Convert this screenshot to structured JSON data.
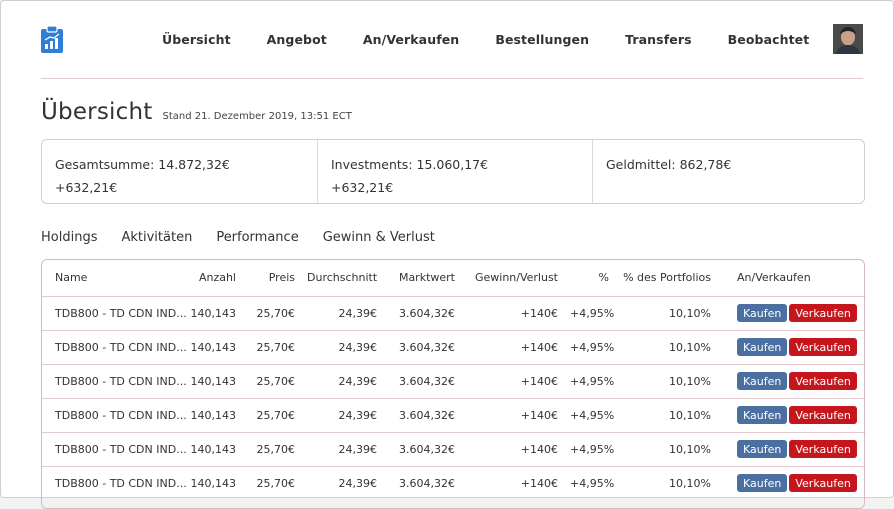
{
  "nav": {
    "items": [
      "Übersicht",
      "Angebot",
      "An/Verkaufen",
      "Bestellungen",
      "Transfers",
      "Beobachtet"
    ]
  },
  "page": {
    "title": "Übersicht",
    "stand": "Stand 21. Dezember 2019, 13:51 ECT"
  },
  "summary": {
    "gesamt": "Gesamtsumme: 14.872,32€",
    "gesamt_change": "+632,21€",
    "investments": "Investments: 15.060,17€",
    "investments_change": "+632,21€",
    "geldmittel": "Geldmittel: 862,78€"
  },
  "tabs": [
    "Holdings",
    "Aktivitäten",
    "Performance",
    "Gewinn & Verlust"
  ],
  "table": {
    "headers": [
      "Name",
      "Anzahl",
      "Preis",
      "Durchschnitt",
      "Marktwert",
      "Gewinn/Verlust",
      "%",
      "% des Portfolios",
      "An/Verkaufen"
    ],
    "buy_label": "Kaufen",
    "sell_label": "Verkaufen",
    "rows": [
      [
        "TDB800 - TD CDN IND...",
        "140,143",
        "25,70€",
        "24,39€",
        "3.604,32€",
        "+140€",
        "+4,95%",
        "10,10%"
      ],
      [
        "TDB800 - TD CDN IND...",
        "140,143",
        "25,70€",
        "24,39€",
        "3.604,32€",
        "+140€",
        "+4,95%",
        "10,10%"
      ],
      [
        "TDB800 - TD CDN IND...",
        "140,143",
        "25,70€",
        "24,39€",
        "3.604,32€",
        "+140€",
        "+4,95%",
        "10,10%"
      ],
      [
        "TDB800 - TD CDN IND...",
        "140,143",
        "25,70€",
        "24,39€",
        "3.604,32€",
        "+140€",
        "+4,95%",
        "10,10%"
      ],
      [
        "TDB800 - TD CDN IND...",
        "140,143",
        "25,70€",
        "24,39€",
        "3.604,32€",
        "+140€",
        "+4,95%",
        "10,10%"
      ],
      [
        "TDB800 - TD CDN IND...",
        "140,143",
        "25,70€",
        "24,39€",
        "3.604,32€",
        "+140€",
        "+4,95%",
        "10,10%"
      ]
    ]
  },
  "icons": {
    "logo": "clipboard-chart-icon",
    "avatar": "user-avatar"
  },
  "colors": {
    "brand_blue": "#2f7fd6",
    "buy": "#4a6fa0",
    "sell": "#c4161c",
    "divider": "#e6c9cc"
  }
}
